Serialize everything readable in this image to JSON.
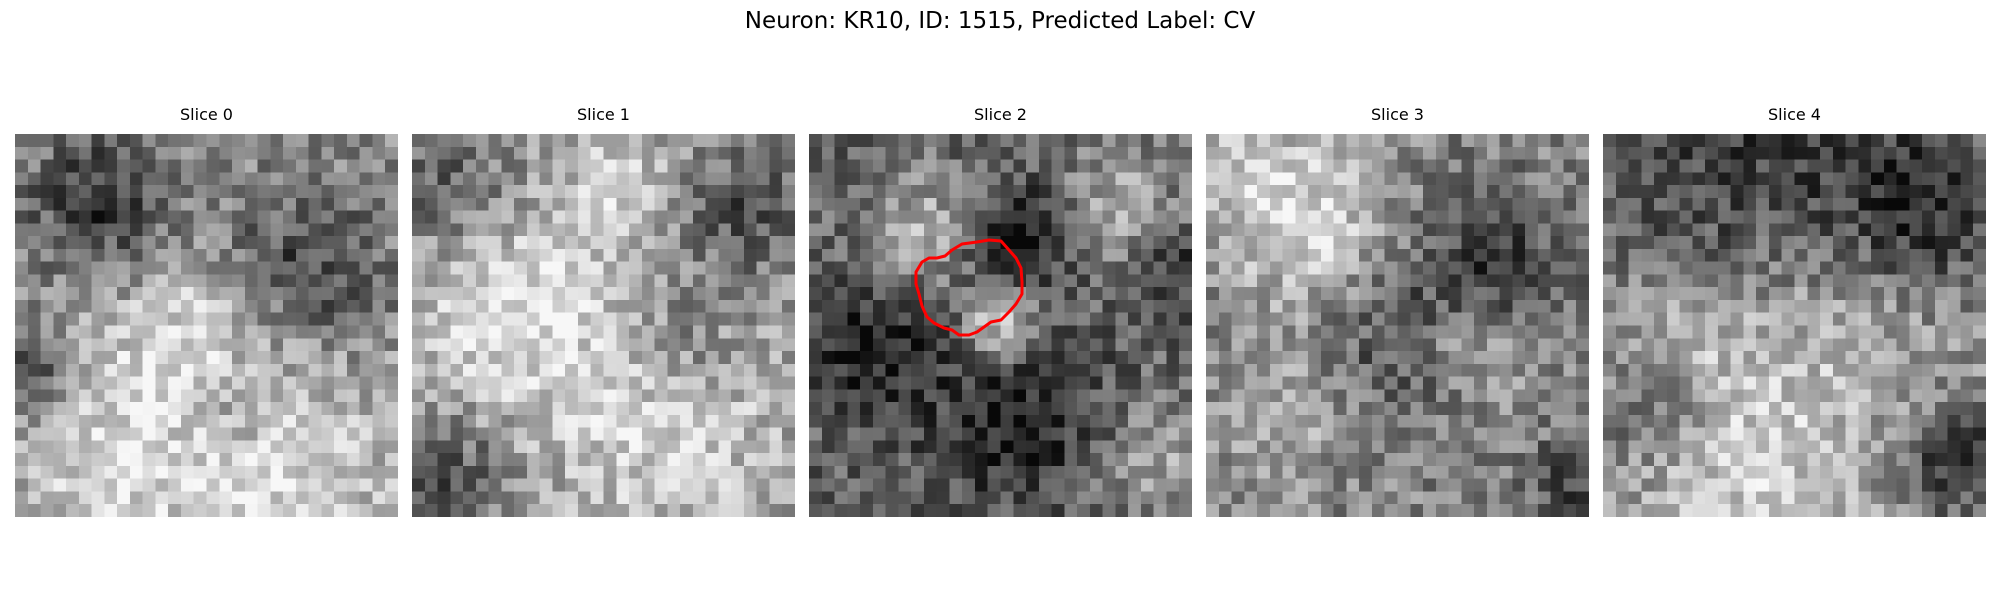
{
  "figure": {
    "title": "Neuron: KR10, ID: 1515, Predicted Label: CV"
  },
  "slices": [
    {
      "title": "Slice 0",
      "has_contour": false,
      "seed": 11,
      "mean": 0.55,
      "dark_blobs": [
        [
          0.22,
          0.18,
          0.18,
          0.35
        ],
        [
          0.75,
          0.35,
          0.2,
          0.3
        ],
        [
          0.05,
          0.62,
          0.1,
          0.35
        ],
        [
          0.55,
          0.7,
          0.14,
          0.25
        ]
      ],
      "light_blobs": [
        [
          0.45,
          0.55,
          0.22,
          0.3
        ],
        [
          0.72,
          0.88,
          0.3,
          0.3
        ],
        [
          0.25,
          0.9,
          0.3,
          0.25
        ]
      ]
    },
    {
      "title": "Slice 1",
      "has_contour": false,
      "seed": 23,
      "mean": 0.6,
      "dark_blobs": [
        [
          0.85,
          0.2,
          0.18,
          0.3
        ],
        [
          0.1,
          0.15,
          0.18,
          0.25
        ],
        [
          0.1,
          0.9,
          0.15,
          0.3
        ],
        [
          0.7,
          0.55,
          0.15,
          0.2
        ]
      ],
      "light_blobs": [
        [
          0.25,
          0.45,
          0.25,
          0.3
        ],
        [
          0.65,
          0.75,
          0.3,
          0.25
        ],
        [
          0.55,
          0.15,
          0.18,
          0.2
        ]
      ]
    },
    {
      "title": "Slice 2",
      "has_contour": true,
      "seed": 37,
      "mean": 0.4,
      "dark_blobs": [
        [
          0.55,
          0.28,
          0.14,
          0.35
        ],
        [
          0.15,
          0.55,
          0.18,
          0.3
        ],
        [
          0.55,
          0.75,
          0.22,
          0.3
        ],
        [
          0.95,
          0.35,
          0.1,
          0.25
        ]
      ],
      "light_blobs": [
        [
          0.5,
          0.5,
          0.1,
          0.45
        ],
        [
          0.3,
          0.25,
          0.15,
          0.3
        ],
        [
          0.8,
          0.2,
          0.15,
          0.3
        ],
        [
          0.9,
          0.85,
          0.15,
          0.25
        ]
      ]
    },
    {
      "title": "Slice 3",
      "has_contour": false,
      "seed": 41,
      "mean": 0.52,
      "dark_blobs": [
        [
          0.75,
          0.35,
          0.2,
          0.3
        ],
        [
          0.45,
          0.55,
          0.25,
          0.25
        ],
        [
          0.95,
          0.9,
          0.1,
          0.3
        ]
      ],
      "light_blobs": [
        [
          0.3,
          0.3,
          0.2,
          0.3
        ],
        [
          0.15,
          0.1,
          0.2,
          0.25
        ],
        [
          0.7,
          0.55,
          0.15,
          0.25
        ],
        [
          0.25,
          0.7,
          0.2,
          0.2
        ]
      ]
    },
    {
      "title": "Slice 4",
      "has_contour": false,
      "seed": 53,
      "mean": 0.6,
      "dark_blobs": [
        [
          0.45,
          0.2,
          0.5,
          0.45
        ],
        [
          0.15,
          0.7,
          0.15,
          0.3
        ],
        [
          0.92,
          0.85,
          0.15,
          0.4
        ],
        [
          0.85,
          0.2,
          0.2,
          0.3
        ]
      ],
      "light_blobs": [
        [
          0.55,
          0.5,
          0.35,
          0.35
        ],
        [
          0.2,
          0.55,
          0.2,
          0.25
        ],
        [
          0.35,
          0.9,
          0.25,
          0.2
        ]
      ]
    }
  ],
  "colors": {
    "contour": "#ff0000",
    "background": "#ffffff"
  }
}
